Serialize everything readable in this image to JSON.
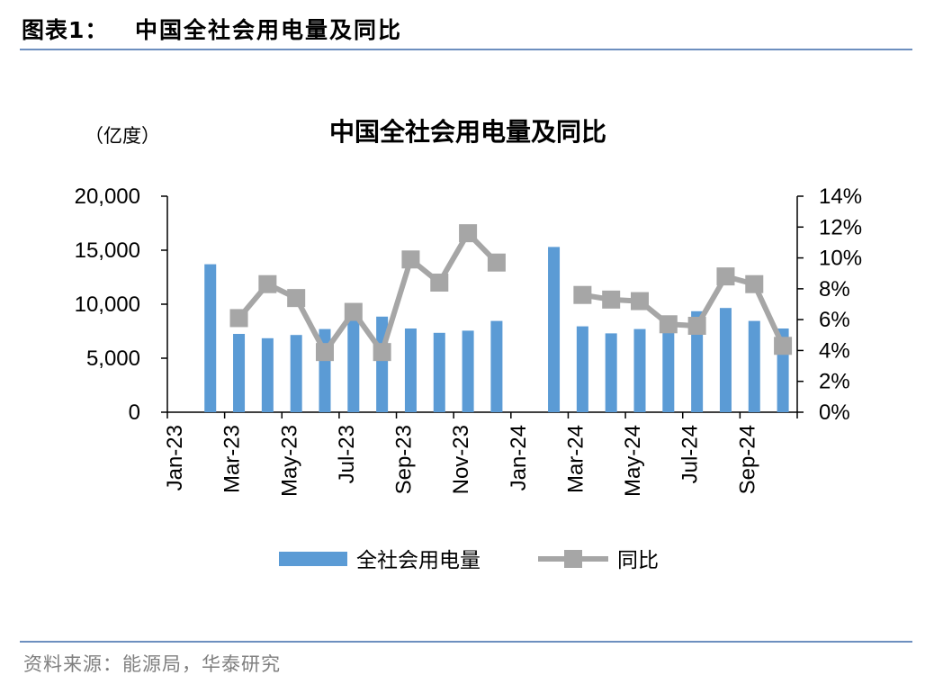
{
  "header": {
    "label": "图表1：",
    "title": "中国全社会用电量及同比"
  },
  "source": "资料来源：能源局，华泰研究",
  "chart_data": {
    "type": "bar+line",
    "title": "中国全社会用电量及同比",
    "left_unit": "（亿度）",
    "categories": [
      "Jan-23",
      "Feb-23",
      "Mar-23",
      "Apr-23",
      "May-23",
      "Jun-23",
      "Jul-23",
      "Aug-23",
      "Sep-23",
      "Oct-23",
      "Nov-23",
      "Dec-23",
      "Jan-24",
      "Feb-24",
      "Mar-24",
      "Apr-24",
      "May-24",
      "Jun-24",
      "Jul-24",
      "Aug-24",
      "Sep-24",
      "Oct-24"
    ],
    "x_tick_labels": [
      "Jan-23",
      "Mar-23",
      "May-23",
      "Jul-23",
      "Sep-23",
      "Nov-23",
      "Jan-24",
      "Mar-24",
      "May-24",
      "Jul-24",
      "Sep-24"
    ],
    "y_left": {
      "min": 0,
      "max": 20000,
      "ticks": [
        "0",
        "5,000",
        "10,000",
        "15,000",
        "20,000"
      ]
    },
    "y_right": {
      "min": 0,
      "max": 0.14,
      "ticks": [
        "0%",
        "2%",
        "4%",
        "6%",
        "8%",
        "10%",
        "12%",
        "14%"
      ]
    },
    "series": [
      {
        "name": "全社会用电量",
        "kind": "bar",
        "axis": "left",
        "color": "#5b9bd5",
        "values": [
          null,
          13700,
          7250,
          6850,
          7150,
          7700,
          8700,
          8850,
          7750,
          7350,
          7550,
          8450,
          null,
          15300,
          7950,
          7300,
          7700,
          8100,
          9350,
          9650,
          8450,
          7750
        ]
      },
      {
        "name": "同比",
        "kind": "line",
        "axis": "right",
        "color": "#a6a6a6",
        "values": [
          null,
          null,
          0.061,
          0.083,
          0.074,
          0.039,
          0.065,
          0.039,
          0.099,
          0.084,
          0.116,
          0.097,
          null,
          null,
          0.076,
          0.073,
          0.072,
          0.057,
          0.056,
          0.088,
          0.083,
          0.043
        ]
      }
    ],
    "legend_position": "bottom-center",
    "grid": false
  }
}
